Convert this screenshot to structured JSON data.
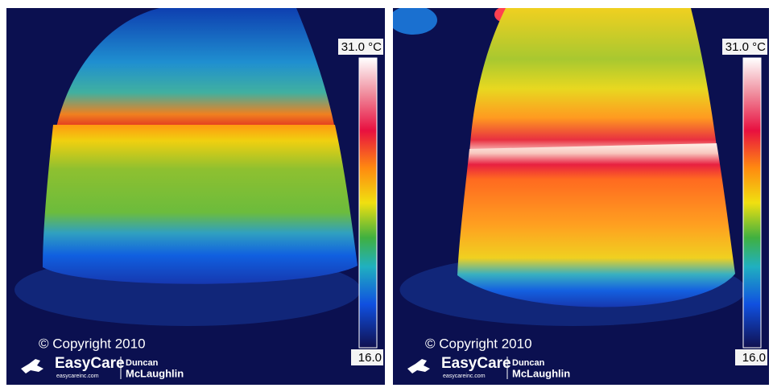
{
  "panels": [
    {
      "scale": {
        "max": "31.0 °C",
        "min": "16.0"
      },
      "copyright": "© Copyright 2010",
      "logo": {
        "brand": "EasyCare",
        "url": "easycareinc.com",
        "author": [
          "Duncan",
          "McLaughlin"
        ]
      }
    },
    {
      "scale": {
        "max": "31.0 °C",
        "min": "16.0"
      },
      "copyright": "© Copyright 2010",
      "logo": {
        "brand": "EasyCare",
        "url": "easycareinc.com",
        "author": [
          "Duncan",
          "McLaughlin"
        ]
      }
    }
  ]
}
